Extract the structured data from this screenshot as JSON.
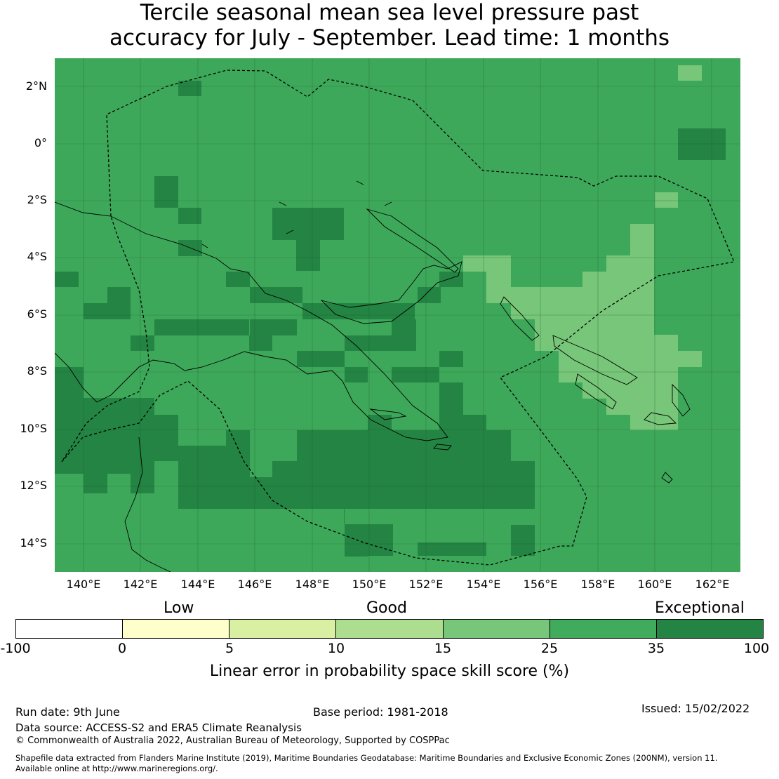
{
  "title": {
    "line1": "Tercile seasonal mean sea level pressure past",
    "line2": "accuracy for July - September. Lead time: 1 months"
  },
  "map": {
    "lon_range": [
      139,
      163
    ],
    "lat_range": [
      -15,
      3
    ],
    "background_color": "#3ea85a",
    "lat_labels": [
      "2°N",
      "0°",
      "2°S",
      "4°S",
      "6°S",
      "8°S",
      "10°S",
      "12°S",
      "14°S"
    ],
    "lon_labels": [
      "140°E",
      "142°E",
      "144°E",
      "146°E",
      "148°E",
      "150°E",
      "152°E",
      "154°E",
      "156°E",
      "158°E",
      "160°E",
      "162°E"
    ],
    "shading": {
      "exceptional": "#238443",
      "good_high": "#78c679"
    }
  },
  "legend": {
    "categories": [
      "Low",
      "Good",
      "Exceptional"
    ],
    "ticks": [
      "-100",
      "0",
      "5",
      "10",
      "15",
      "25",
      "35",
      "100"
    ],
    "colors": [
      "#ffffff",
      "#ffffcc",
      "#d9f0a3",
      "#addd8e",
      "#78c679",
      "#41ab5d",
      "#238443"
    ],
    "label": "Linear error in probability space skill score (%)"
  },
  "footer": {
    "run_date": "Run date: 9th June",
    "base_period": "Base period: 1981-2018",
    "issued": "Issued: 15/02/2022",
    "data_source": "Data source: ACCESS-S2 and ERA5 Climate Reanalysis",
    "copyright": "© Commonwealth of Australia 2022, Australian Bureau of Meteorology, Supported by COSPPac",
    "shapefile_line1": "Shapefile data extracted from Flanders Marine Institute (2019), Maritime Boundaries Geodatabase: Maritime Boundaries and Exclusive Economic Zones (200NM), version 11.",
    "shapefile_line2": "Available online at http://www.marineregions.org/."
  }
}
